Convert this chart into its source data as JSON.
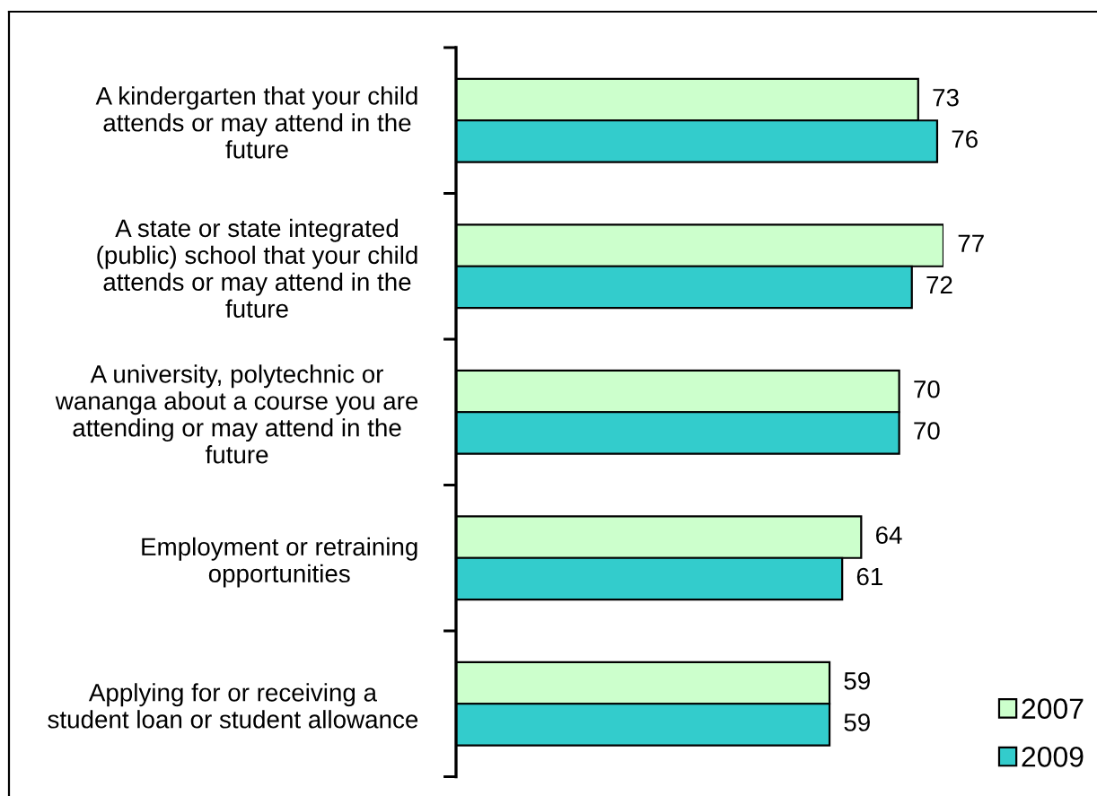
{
  "chart_data": {
    "type": "bar",
    "orientation": "horizontal",
    "categories": [
      "A kindergarten that your child\nattends or may attend in the\nfuture",
      "A state or state integrated\n(public) school that your child\nattends or may attend in the\nfuture",
      "A university, polytechnic or\nwananga about a course you are\nattending or may attend in the\nfuture",
      "Employment or retraining\nopportunities",
      "Applying for or receiving a\nstudent loan or student allowance"
    ],
    "series": [
      {
        "name": "2007",
        "color": "#ccffcc",
        "values": [
          73,
          77,
          70,
          64,
          59
        ]
      },
      {
        "name": "2009",
        "color": "#33cccc",
        "values": [
          76,
          72,
          70,
          61,
          59
        ]
      }
    ],
    "data_labels": true,
    "legend": "bottom right",
    "tick_labels": "y"
  }
}
